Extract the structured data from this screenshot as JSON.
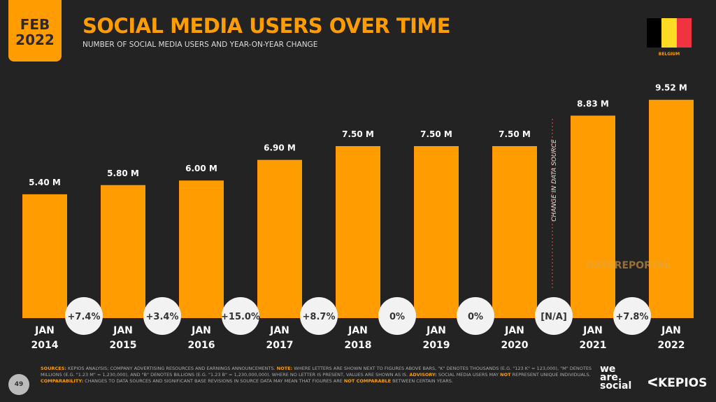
{
  "header": {
    "date_month": "FEB",
    "date_year": "2022",
    "title": "SOCIAL MEDIA USERS OVER TIME",
    "subtitle": "NUMBER OF SOCIAL MEDIA USERS AND YEAR-ON-YEAR CHANGE",
    "country": "BELGIUM",
    "flag_colors": [
      "#000000",
      "#FDDA24",
      "#EF3340"
    ]
  },
  "chart_data": {
    "type": "bar",
    "categories": [
      "JAN 2014",
      "JAN 2015",
      "JAN 2016",
      "JAN 2017",
      "JAN 2018",
      "JAN 2019",
      "JAN 2020",
      "JAN 2021",
      "JAN 2022"
    ],
    "values": [
      5.4,
      5.8,
      6.0,
      6.9,
      7.5,
      7.5,
      7.5,
      8.83,
      9.52
    ],
    "value_labels": [
      "5.40 M",
      "5.80 M",
      "6.00 M",
      "6.90 M",
      "7.50 M",
      "7.50 M",
      "7.50 M",
      "8.83 M",
      "9.52 M"
    ],
    "changes": [
      "+7.4%",
      "+3.4%",
      "+15.0%",
      "+8.7%",
      "0%",
      "0%",
      "[N/A]",
      "+7.8%"
    ],
    "annotation": "CHANGE IN DATA SOURCE",
    "bar_color": "#FF9D00",
    "unit": "M"
  },
  "watermark": "DATAREPORTAL",
  "footer": {
    "page": "49",
    "sources_label": "SOURCES:",
    "sources": " KEPIOS ANALYSIS; COMPANY ADVERTISING RESOURCES AND EARNINGS ANNOUNCEMENTS. ",
    "note_label": "NOTE:",
    "note": " WHERE LETTERS ARE SHOWN NEXT TO FIGURES ABOVE BARS, \"K\" DENOTES THOUSANDS (E.G. \"123 K\" = 123,000), \"M\" DENOTES MILLIONS (E.G. \"1.23 M\" = 1,230,000), AND \"B\" DENOTES BILLIONS (E.G. \"1.23 B\" = 1,230,000,000). WHERE NO LETTER IS PRESENT, VALUES ARE SHOWN AS IS. ",
    "advisory_label": "ADVISORY:",
    "advisory_a": " SOCIAL MEDIA USERS MAY ",
    "advisory_not": "NOT",
    "advisory_b": " REPRESENT UNIQUE INDIVIDUALS. ",
    "comparability_label": "COMPARABILITY:",
    "comparability": " CHANGES TO DATA SOURCES AND SIGNIFICANT BASE REVISIONS IN SOURCE DATA MAY MEAN THAT FIGURES ARE ",
    "comparability_not": "NOT COMPARABLE",
    "comparability_end": " BETWEEN CERTAIN YEARS."
  },
  "logos": {
    "was_1": "we",
    "was_2": "are.",
    "was_3": "social",
    "kepios": "KEPIOS"
  }
}
